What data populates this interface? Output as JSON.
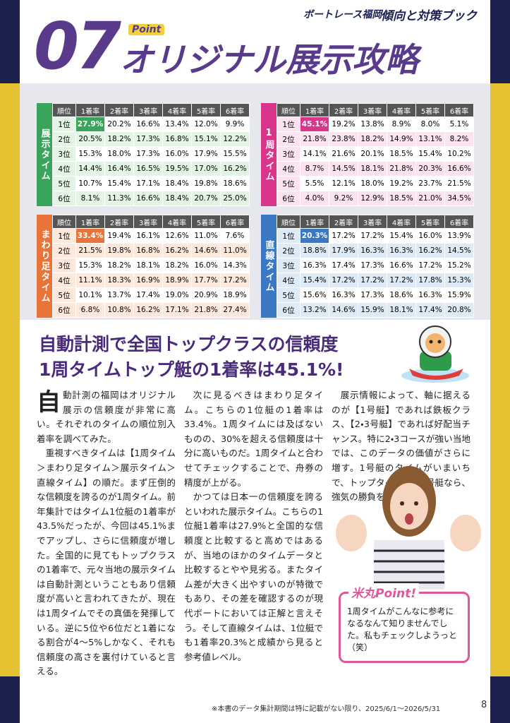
{
  "header": {
    "brand": "ボートレース福岡",
    "book": "傾向と対策ブック",
    "number": "07",
    "point": "Point",
    "title": "オリジナル展示攻略"
  },
  "tables": [
    {
      "label": "展示タイム",
      "columns": [
        "順位",
        "1着率",
        "2着率",
        "3着率",
        "4着率",
        "5着率",
        "6着率"
      ],
      "rows": [
        [
          "1位",
          "27.9%",
          "20.2%",
          "16.6%",
          "13.4%",
          "12.0%",
          "9.9%"
        ],
        [
          "2位",
          "20.5%",
          "18.2%",
          "17.3%",
          "16.8%",
          "15.1%",
          "12.2%"
        ],
        [
          "3位",
          "15.3%",
          "18.0%",
          "17.3%",
          "16.0%",
          "17.9%",
          "15.5%"
        ],
        [
          "4位",
          "14.4%",
          "16.4%",
          "16.5%",
          "19.5%",
          "17.0%",
          "16.2%"
        ],
        [
          "5位",
          "10.7%",
          "15.4%",
          "17.1%",
          "18.4%",
          "19.8%",
          "18.6%"
        ],
        [
          "6位",
          "8.1%",
          "11.3%",
          "16.6%",
          "18.4%",
          "20.7%",
          "25.0%"
        ]
      ]
    },
    {
      "label": "1周タイム",
      "columns": [
        "順位",
        "1着率",
        "2着率",
        "3着率",
        "4着率",
        "5着率",
        "6着率"
      ],
      "rows": [
        [
          "1位",
          "45.1%",
          "19.2%",
          "13.8%",
          "8.9%",
          "8.0%",
          "5.1%"
        ],
        [
          "2位",
          "21.8%",
          "23.8%",
          "18.2%",
          "14.9%",
          "13.1%",
          "8.2%"
        ],
        [
          "3位",
          "14.1%",
          "21.6%",
          "20.1%",
          "18.5%",
          "15.4%",
          "10.2%"
        ],
        [
          "4位",
          "8.7%",
          "14.5%",
          "18.1%",
          "21.8%",
          "20.3%",
          "16.6%"
        ],
        [
          "5位",
          "5.5%",
          "12.1%",
          "18.0%",
          "19.2%",
          "23.7%",
          "21.5%"
        ],
        [
          "6位",
          "4.0%",
          "9.2%",
          "12.9%",
          "18.5%",
          "21.0%",
          "34.5%"
        ]
      ]
    },
    {
      "label": "まわり足タイム",
      "columns": [
        "順位",
        "1着率",
        "2着率",
        "3着率",
        "4着率",
        "5着率",
        "6着率"
      ],
      "rows": [
        [
          "1位",
          "33.4%",
          "19.4%",
          "16.1%",
          "12.6%",
          "11.0%",
          "7.6%"
        ],
        [
          "2位",
          "21.5%",
          "19.8%",
          "16.8%",
          "16.2%",
          "14.6%",
          "11.0%"
        ],
        [
          "3位",
          "15.3%",
          "18.2%",
          "18.1%",
          "18.2%",
          "16.0%",
          "14.3%"
        ],
        [
          "4位",
          "11.1%",
          "18.3%",
          "16.9%",
          "18.9%",
          "17.7%",
          "17.2%"
        ],
        [
          "5位",
          "10.1%",
          "13.7%",
          "17.4%",
          "19.0%",
          "20.9%",
          "18.9%"
        ],
        [
          "6位",
          "6.8%",
          "10.8%",
          "16.2%",
          "17.1%",
          "21.8%",
          "27.4%"
        ]
      ]
    },
    {
      "label": "直線タイム",
      "columns": [
        "順位",
        "1着率",
        "2着率",
        "3着率",
        "4着率",
        "5着率",
        "6着率"
      ],
      "rows": [
        [
          "1位",
          "20.3%",
          "17.2%",
          "17.2%",
          "15.4%",
          "16.0%",
          "13.9%"
        ],
        [
          "2位",
          "18.8%",
          "17.9%",
          "16.3%",
          "16.3%",
          "16.2%",
          "14.5%"
        ],
        [
          "3位",
          "16.3%",
          "17.4%",
          "17.3%",
          "16.6%",
          "17.2%",
          "15.2%"
        ],
        [
          "4位",
          "15.4%",
          "17.2%",
          "17.2%",
          "17.2%",
          "17.8%",
          "15.3%"
        ],
        [
          "5位",
          "15.6%",
          "16.3%",
          "17.3%",
          "18.6%",
          "16.3%",
          "15.9%"
        ],
        [
          "6位",
          "13.2%",
          "14.6%",
          "15.9%",
          "18.1%",
          "17.4%",
          "20.8%"
        ]
      ]
    }
  ],
  "article": {
    "headline": [
      "自動計測で全国トップクラスの信頼度",
      "1周タイムトップ艇の1着率は45.1%!"
    ],
    "dropcap": "自",
    "paragraphs": [
      "動計測の福岡はオリジナル展示の信頼度が非常に高い。それぞれのタイムの順位別入着率を調べてみた。",
      "重視すべきタイムは【1周タイム＞まわり足タイム＞展示タイム＞直線タイム】の順だ。まず圧倒的な信頼度を誇るのが1周タイム。前年集計ではタイム1位艇の1着率が43.5%だったが、今回は45.1%までアップし、さらに信頼度が増した。全国的に見てもトップクラスの1着率で、元々当地の展示タイムは自動計測ということもあり信頼度が高いと言われてきたが、現在は1周タイムでその真価を発揮している。逆に5位や6位だと1着になる割合が4～5%しかなく、それも信頼度の高さを裏付けていると言える。",
      "次に見るべきはまわり足タイム。こちらの1位艇の1着率は33.4%。1周タイムには及ばないものの、30%を超える信頼度は十分に高いものだ。1周タイムと合わせてチェックすることで、舟券の精度が上がる。",
      "かつては日本一の信頼度を誇るといわれた展示タイム。こちらの1位艇1着率は27.9%と全国的な信頼度と比較すると高めではあるが、当地のほかのタイムデータと比較するとやや見劣る。またタイム差が大きく出やすいのが特徴でもあり、その差を確認するのが現代ボートにおいては正解と言えそう。そして直線タイムは、1位艇でも1着率20.3%と成績から見ると参考値レベル。",
      "展示情報によって、軸に据えるのが【1号艇】であれば鉄板クラス、【2・3号艇】であれば好配当チャンス。特に2・3コースが強い当地では、このデータの価値がさらに増す。1号艇のタイムがいまいちで、トップタイムが2・3号艇なら、強気の勝負を仕掛けたい。"
    ]
  },
  "callout": {
    "title": "米丸Point!",
    "text": "1周タイムがこんなに参考になるなんて知りませんでした。私もチェックしようっと（笑）"
  },
  "footer": {
    "note": "※本書のデータ集計期間は特に記載がない限り、2025/6/1～2026/5/31",
    "page": "8"
  }
}
